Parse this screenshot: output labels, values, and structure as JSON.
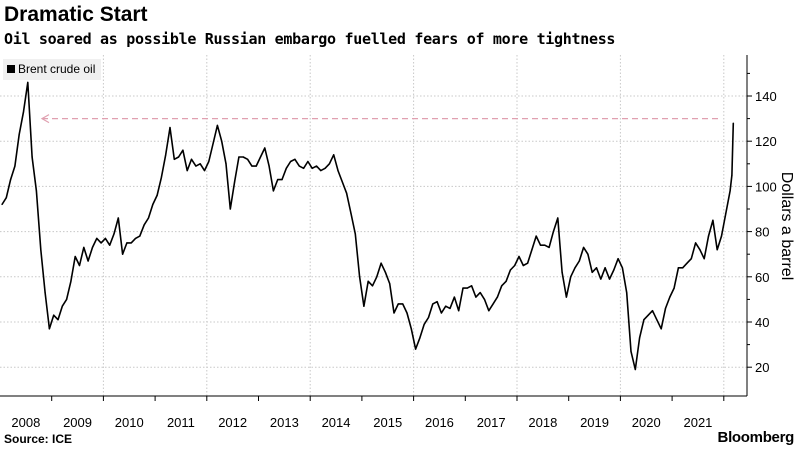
{
  "header": {
    "title": "Dramatic Start",
    "subtitle": "Oil soared as possible Russian embargo fuelled fears of more tightness"
  },
  "footer": {
    "source": "Source: ICE",
    "logo": "Bloomberg"
  },
  "chart_data": {
    "type": "line",
    "title": "Dramatic Start",
    "ylabel": "Dollars a barrel",
    "xlabel": "",
    "ylim": [
      8,
      158
    ],
    "xlim": [
      "2008-01",
      "2022-04"
    ],
    "y_ticks": [
      20,
      40,
      60,
      80,
      100,
      120,
      140
    ],
    "x_ticks": [
      "2008",
      "2009",
      "2010",
      "2011",
      "2012",
      "2013",
      "2014",
      "2015",
      "2016",
      "2017",
      "2018",
      "2019",
      "2020",
      "2021"
    ],
    "grid": true,
    "y_axis_side": "right",
    "legend": {
      "position": "top-left",
      "entries": [
        "Brent crude oil"
      ]
    },
    "reference_line": {
      "value": 130,
      "style": "dashed",
      "color": "#e0a0b0",
      "arrow": "left"
    },
    "series": [
      {
        "name": "Brent crude oil",
        "color": "#000000",
        "points": [
          [
            "2008-01",
            92
          ],
          [
            "2008-02",
            95
          ],
          [
            "2008-03",
            103
          ],
          [
            "2008-04",
            109
          ],
          [
            "2008-05",
            123
          ],
          [
            "2008-06",
            133
          ],
          [
            "2008-07",
            146
          ],
          [
            "2008-08",
            113
          ],
          [
            "2008-09",
            98
          ],
          [
            "2008-10",
            72
          ],
          [
            "2008-11",
            53
          ],
          [
            "2008-12",
            37
          ],
          [
            "2009-01",
            43
          ],
          [
            "2009-02",
            41
          ],
          [
            "2009-03",
            47
          ],
          [
            "2009-04",
            50
          ],
          [
            "2009-05",
            58
          ],
          [
            "2009-06",
            69
          ],
          [
            "2009-07",
            65
          ],
          [
            "2009-08",
            73
          ],
          [
            "2009-09",
            67
          ],
          [
            "2009-10",
            73
          ],
          [
            "2009-11",
            77
          ],
          [
            "2009-12",
            75
          ],
          [
            "2010-01",
            77
          ],
          [
            "2010-02",
            74
          ],
          [
            "2010-03",
            79
          ],
          [
            "2010-04",
            86
          ],
          [
            "2010-05",
            70
          ],
          [
            "2010-06",
            75
          ],
          [
            "2010-07",
            75
          ],
          [
            "2010-08",
            77
          ],
          [
            "2010-09",
            78
          ],
          [
            "2010-10",
            83
          ],
          [
            "2010-11",
            86
          ],
          [
            "2010-12",
            92
          ],
          [
            "2011-01",
            96
          ],
          [
            "2011-02",
            104
          ],
          [
            "2011-03",
            114
          ],
          [
            "2011-04",
            126
          ],
          [
            "2011-05",
            112
          ],
          [
            "2011-06",
            113
          ],
          [
            "2011-07",
            116
          ],
          [
            "2011-08",
            107
          ],
          [
            "2011-09",
            112
          ],
          [
            "2011-10",
            109
          ],
          [
            "2011-11",
            110
          ],
          [
            "2011-12",
            107
          ],
          [
            "2012-01",
            111
          ],
          [
            "2012-02",
            119
          ],
          [
            "2012-03",
            127
          ],
          [
            "2012-04",
            120
          ],
          [
            "2012-05",
            110
          ],
          [
            "2012-06",
            90
          ],
          [
            "2012-07",
            102
          ],
          [
            "2012-08",
            113
          ],
          [
            "2012-09",
            113
          ],
          [
            "2012-10",
            112
          ],
          [
            "2012-11",
            109
          ],
          [
            "2012-12",
            109
          ],
          [
            "2013-01",
            113
          ],
          [
            "2013-02",
            117
          ],
          [
            "2013-03",
            109
          ],
          [
            "2013-04",
            98
          ],
          [
            "2013-05",
            103
          ],
          [
            "2013-06",
            103
          ],
          [
            "2013-07",
            108
          ],
          [
            "2013-08",
            111
          ],
          [
            "2013-09",
            112
          ],
          [
            "2013-10",
            109
          ],
          [
            "2013-11",
            108
          ],
          [
            "2013-12",
            111
          ],
          [
            "2014-01",
            108
          ],
          [
            "2014-02",
            109
          ],
          [
            "2014-03",
            107
          ],
          [
            "2014-04",
            108
          ],
          [
            "2014-05",
            110
          ],
          [
            "2014-06",
            114
          ],
          [
            "2014-07",
            107
          ],
          [
            "2014-08",
            102
          ],
          [
            "2014-09",
            97
          ],
          [
            "2014-10",
            88
          ],
          [
            "2014-11",
            79
          ],
          [
            "2014-12",
            60
          ],
          [
            "2015-01",
            47
          ],
          [
            "2015-02",
            58
          ],
          [
            "2015-03",
            56
          ],
          [
            "2015-04",
            60
          ],
          [
            "2015-05",
            66
          ],
          [
            "2015-06",
            62
          ],
          [
            "2015-07",
            57
          ],
          [
            "2015-08",
            44
          ],
          [
            "2015-09",
            48
          ],
          [
            "2015-10",
            48
          ],
          [
            "2015-11",
            44
          ],
          [
            "2015-12",
            37
          ],
          [
            "2016-01",
            28
          ],
          [
            "2016-02",
            33
          ],
          [
            "2016-03",
            39
          ],
          [
            "2016-04",
            42
          ],
          [
            "2016-05",
            48
          ],
          [
            "2016-06",
            49
          ],
          [
            "2016-07",
            44
          ],
          [
            "2016-08",
            47
          ],
          [
            "2016-09",
            46
          ],
          [
            "2016-10",
            51
          ],
          [
            "2016-11",
            45
          ],
          [
            "2016-12",
            55
          ],
          [
            "2017-01",
            55
          ],
          [
            "2017-02",
            56
          ],
          [
            "2017-03",
            51
          ],
          [
            "2017-04",
            53
          ],
          [
            "2017-05",
            50
          ],
          [
            "2017-06",
            45
          ],
          [
            "2017-07",
            48
          ],
          [
            "2017-08",
            51
          ],
          [
            "2017-09",
            56
          ],
          [
            "2017-10",
            58
          ],
          [
            "2017-11",
            63
          ],
          [
            "2017-12",
            65
          ],
          [
            "2018-01",
            69
          ],
          [
            "2018-02",
            65
          ],
          [
            "2018-03",
            66
          ],
          [
            "2018-04",
            72
          ],
          [
            "2018-05",
            78
          ],
          [
            "2018-06",
            74
          ],
          [
            "2018-07",
            74
          ],
          [
            "2018-08",
            73
          ],
          [
            "2018-09",
            80
          ],
          [
            "2018-10",
            86
          ],
          [
            "2018-11",
            62
          ],
          [
            "2018-12",
            51
          ],
          [
            "2019-01",
            60
          ],
          [
            "2019-02",
            64
          ],
          [
            "2019-03",
            67
          ],
          [
            "2019-04",
            73
          ],
          [
            "2019-05",
            70
          ],
          [
            "2019-06",
            62
          ],
          [
            "2019-07",
            64
          ],
          [
            "2019-08",
            59
          ],
          [
            "2019-09",
            64
          ],
          [
            "2019-10",
            59
          ],
          [
            "2019-11",
            63
          ],
          [
            "2019-12",
            68
          ],
          [
            "2020-01",
            64
          ],
          [
            "2020-02",
            53
          ],
          [
            "2020-03",
            27
          ],
          [
            "2020-04",
            19
          ],
          [
            "2020-05",
            33
          ],
          [
            "2020-06",
            41
          ],
          [
            "2020-07",
            43
          ],
          [
            "2020-08",
            45
          ],
          [
            "2020-09",
            41
          ],
          [
            "2020-10",
            37
          ],
          [
            "2020-11",
            46
          ],
          [
            "2020-12",
            51
          ],
          [
            "2021-01",
            55
          ],
          [
            "2021-02",
            64
          ],
          [
            "2021-03",
            64
          ],
          [
            "2021-04",
            66
          ],
          [
            "2021-05",
            68
          ],
          [
            "2021-06",
            75
          ],
          [
            "2021-07",
            72
          ],
          [
            "2021-08",
            68
          ],
          [
            "2021-09",
            78
          ],
          [
            "2021-10",
            85
          ],
          [
            "2021-11",
            72
          ],
          [
            "2021-12",
            78
          ],
          [
            "2022-01",
            88
          ],
          [
            "2022-02",
            98
          ],
          [
            "2022-02-28",
            105
          ],
          [
            "2022-03-07",
            128
          ]
        ]
      }
    ]
  }
}
